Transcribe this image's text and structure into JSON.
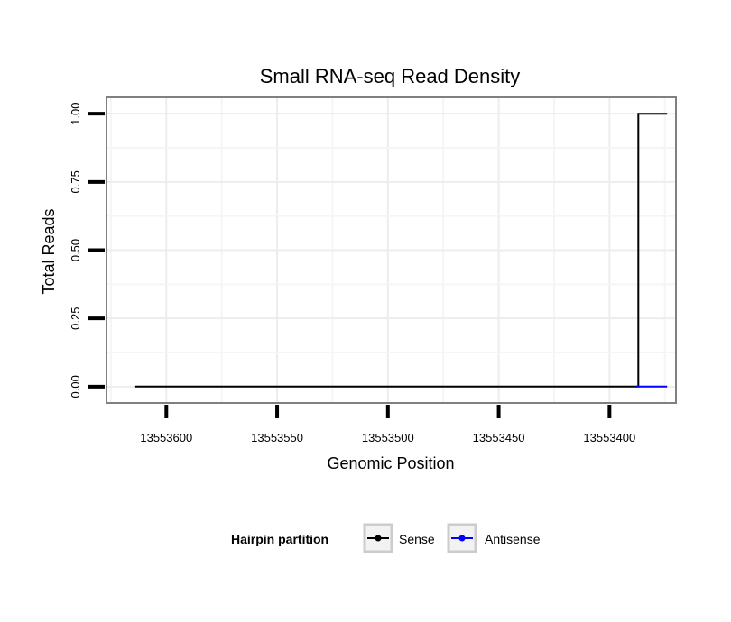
{
  "chart_data": {
    "type": "line",
    "title": "Small RNA-seq Read Density",
    "xlabel": "Genomic Position",
    "ylabel": "Total Reads",
    "x_reversed": true,
    "xlim": [
      13553627,
      13553370
    ],
    "ylim": [
      -0.06,
      1.06
    ],
    "x_ticks": [
      13553600,
      13553550,
      13553500,
      13553450,
      13553400
    ],
    "x_tick_labels": [
      "13553600",
      "13553550",
      "13553500",
      "13553450",
      "13553400"
    ],
    "y_ticks": [
      0,
      0.25,
      0.5,
      0.75,
      1.0
    ],
    "y_tick_labels": [
      "0.00",
      "0.25",
      "0.50",
      "0.75",
      "1.00"
    ],
    "grid": true,
    "legend": {
      "title": "Hairpin partition",
      "position": "bottom"
    },
    "series": [
      {
        "name": "Sense",
        "color": "#000000",
        "step": true,
        "x": [
          13553614,
          13553388,
          13553387,
          13553374
        ],
        "y": [
          0,
          0,
          1,
          1
        ]
      },
      {
        "name": "Antisense",
        "color": "#0000ff",
        "step": true,
        "x": [
          13553388,
          13553374
        ],
        "y": [
          0,
          0
        ]
      }
    ]
  }
}
